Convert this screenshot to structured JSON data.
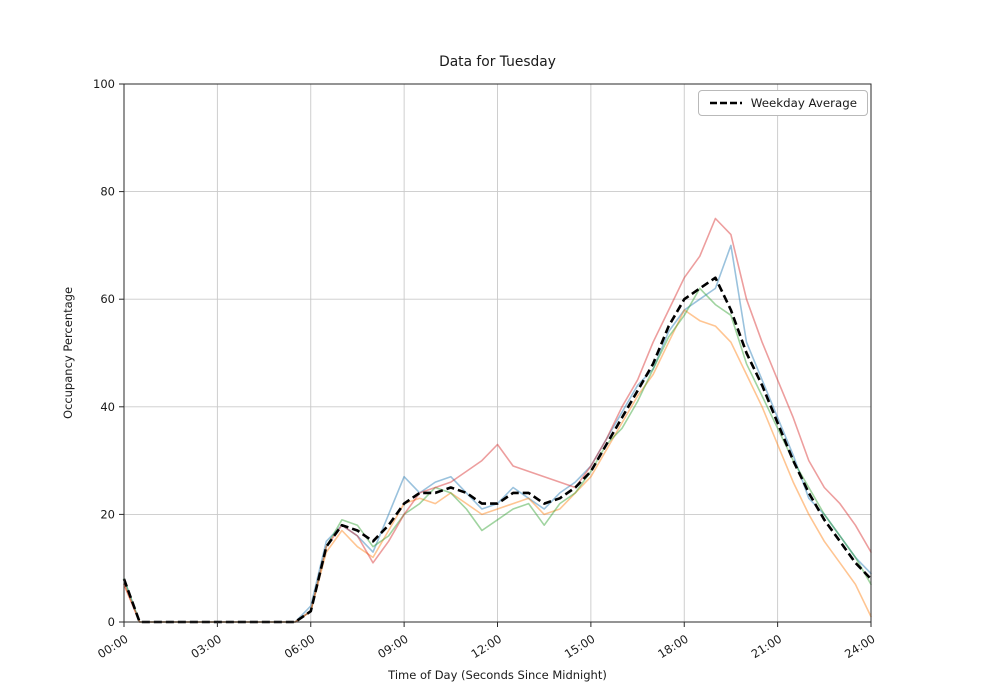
{
  "figure": {
    "background": "#ffffff"
  },
  "chart_data": {
    "type": "line",
    "title": "Data for Tuesday",
    "xlabel": "Time of Day (Seconds Since Midnight)",
    "ylabel": "Occupancy Percentage",
    "xlim": [
      0,
      86400
    ],
    "ylim": [
      0,
      100
    ],
    "grid": true,
    "legend_position": "upper right",
    "legend_entries": [
      {
        "label": "Weekday Average",
        "style": "black-dashed-line"
      }
    ],
    "y_ticks": [
      0,
      20,
      40,
      60,
      80,
      100
    ],
    "x_ticks": [
      {
        "value": 0,
        "label": "00:00"
      },
      {
        "value": 10800,
        "label": "03:00"
      },
      {
        "value": 21600,
        "label": "06:00"
      },
      {
        "value": 32400,
        "label": "09:00"
      },
      {
        "value": 43200,
        "label": "12:00"
      },
      {
        "value": 54000,
        "label": "15:00"
      },
      {
        "value": 64800,
        "label": "18:00"
      },
      {
        "value": 75600,
        "label": "21:00"
      },
      {
        "value": 86400,
        "label": "24:00"
      }
    ],
    "x_seconds": [
      0,
      1800,
      3600,
      5400,
      7200,
      9000,
      10800,
      12600,
      14400,
      16200,
      18000,
      19800,
      21600,
      23400,
      25200,
      27000,
      28800,
      30600,
      32400,
      34200,
      36000,
      37800,
      39600,
      41400,
      43200,
      45000,
      46800,
      48600,
      50400,
      52200,
      54000,
      55800,
      57600,
      59400,
      61200,
      63000,
      64800,
      66600,
      68400,
      70200,
      72000,
      73800,
      75600,
      77400,
      79200,
      81000,
      82800,
      84600,
      86400
    ],
    "series": [
      {
        "name": "weekday-line-blue",
        "color": "#1f77b4",
        "opacity": 0.45,
        "values": [
          8,
          0,
          0,
          0,
          0,
          0,
          0,
          0,
          0,
          0,
          0,
          0,
          3,
          15,
          18,
          16,
          13,
          20,
          27,
          24,
          26,
          27,
          24,
          21,
          22,
          25,
          23,
          21,
          24,
          26,
          29,
          34,
          39,
          44,
          47,
          54,
          58,
          60,
          62,
          70,
          52,
          45,
          38,
          31,
          23,
          20,
          16,
          12,
          9
        ]
      },
      {
        "name": "weekday-line-orange",
        "color": "#ff7f0e",
        "opacity": 0.45,
        "values": [
          7,
          0,
          0,
          0,
          0,
          0,
          0,
          0,
          0,
          0,
          0,
          0,
          2,
          13,
          17,
          14,
          12,
          17,
          22,
          23,
          22,
          24,
          22,
          20,
          21,
          22,
          23,
          20,
          21,
          24,
          27,
          32,
          37,
          42,
          46,
          52,
          58,
          56,
          55,
          52,
          46,
          40,
          33,
          26,
          20,
          15,
          11,
          7,
          1
        ]
      },
      {
        "name": "weekday-line-green",
        "color": "#2ca02c",
        "opacity": 0.45,
        "values": [
          8,
          0,
          0,
          0,
          0,
          0,
          0,
          0,
          0,
          0,
          0,
          0,
          2,
          14,
          19,
          18,
          14,
          16,
          20,
          22,
          25,
          24,
          21,
          17,
          19,
          21,
          22,
          18,
          22,
          24,
          28,
          33,
          36,
          41,
          47,
          53,
          57,
          62,
          59,
          57,
          48,
          42,
          36,
          30,
          25,
          20,
          16,
          12,
          7
        ]
      },
      {
        "name": "weekday-line-red",
        "color": "#d62728",
        "opacity": 0.45,
        "values": [
          7,
          0,
          0,
          0,
          0,
          0,
          0,
          0,
          0,
          0,
          0,
          0,
          2,
          14,
          18,
          16,
          11,
          15,
          20,
          24,
          25,
          26,
          28,
          30,
          33,
          29,
          28,
          27,
          26,
          25,
          29,
          34,
          40,
          45,
          52,
          58,
          64,
          68,
          75,
          72,
          60,
          52,
          45,
          38,
          30,
          25,
          22,
          18,
          13
        ]
      }
    ],
    "average": {
      "name": "Weekday Average",
      "color": "#000000",
      "dashed": true,
      "values": [
        8,
        0,
        0,
        0,
        0,
        0,
        0,
        0,
        0,
        0,
        0,
        0,
        2,
        14,
        18,
        17,
        15,
        18,
        22,
        24,
        24,
        25,
        24,
        22,
        22,
        24,
        24,
        22,
        23,
        25,
        28,
        33,
        38,
        43,
        48,
        55,
        60,
        62,
        64,
        58,
        50,
        44,
        37,
        30,
        24,
        19,
        15,
        11,
        8
      ]
    }
  }
}
